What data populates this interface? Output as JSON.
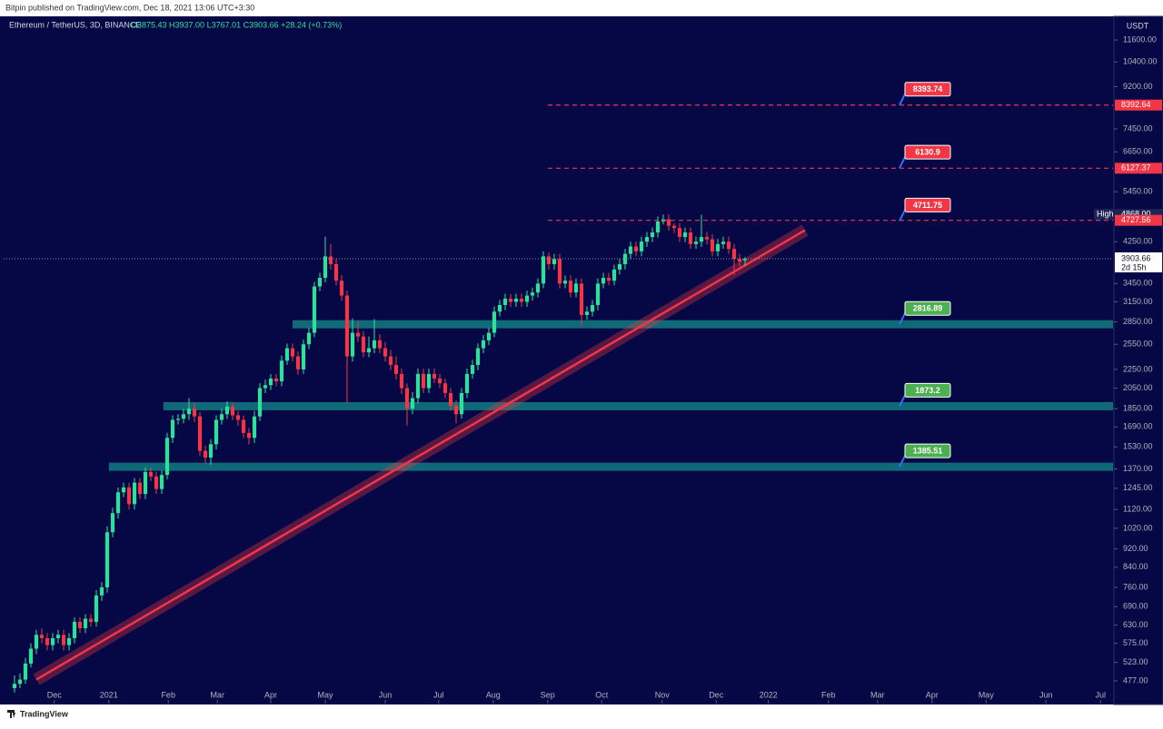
{
  "header": {
    "publisher": "Bitpin published on TradingView.com, Dec 18, 2021 13:06 UTC+3:30",
    "footer": "TradingView"
  },
  "chart_data": {
    "type": "candlestick",
    "symbol": "Ethereum / TetherUS, 3D, BINANCE",
    "ohlc_text": "O3875.43 H3937.00 L3767.01 C3903.66 +28.24 (+0.73%)",
    "currency": "USDT",
    "log_scale": true,
    "up_color": "#2fe09b",
    "down_color": "#f23645",
    "ylim": [
      426,
      13055
    ],
    "xlim": [
      -2,
      201.5
    ],
    "yticks": [
      {
        "value": 11600,
        "label": "11600.00"
      },
      {
        "value": 10400,
        "label": "10400.00"
      },
      {
        "value": 9200,
        "label": "9200.00"
      },
      {
        "value": 7450,
        "label": "7450.00"
      },
      {
        "value": 6650,
        "label": "6650.00"
      },
      {
        "value": 5450,
        "label": "5450.00"
      },
      {
        "value": 4250,
        "label": "4250.00"
      },
      {
        "value": 3450,
        "label": "3450.00"
      },
      {
        "value": 3150,
        "label": "3150.00"
      },
      {
        "value": 2850,
        "label": "2850.00"
      },
      {
        "value": 2550,
        "label": "2550.00"
      },
      {
        "value": 2250,
        "label": "2250.00"
      },
      {
        "value": 2050,
        "label": "2050.00"
      },
      {
        "value": 1850,
        "label": "1850.00"
      },
      {
        "value": 1690,
        "label": "1690.00"
      },
      {
        "value": 1530,
        "label": "1530.00"
      },
      {
        "value": 1370,
        "label": "1370.00"
      },
      {
        "value": 1245,
        "label": "1245.00"
      },
      {
        "value": 1120,
        "label": "1120.00"
      },
      {
        "value": 1020,
        "label": "1020.00"
      },
      {
        "value": 920,
        "label": "920.00"
      },
      {
        "value": 840,
        "label": "840.00"
      },
      {
        "value": 760,
        "label": "760.00"
      },
      {
        "value": 690,
        "label": "690.00"
      },
      {
        "value": 630,
        "label": "630.00"
      },
      {
        "value": 575,
        "label": "575.00"
      },
      {
        "value": 523,
        "label": "523.00"
      },
      {
        "value": 477,
        "label": "477.00"
      }
    ],
    "xticks": [
      {
        "value": 7.3,
        "label": "Dec"
      },
      {
        "value": 17.3,
        "label": "2021"
      },
      {
        "value": 28.2,
        "label": "Feb"
      },
      {
        "value": 37.2,
        "label": "Mar"
      },
      {
        "value": 47,
        "label": "Apr"
      },
      {
        "value": 57,
        "label": "May"
      },
      {
        "value": 68,
        "label": "Jun"
      },
      {
        "value": 77.8,
        "label": "Jul"
      },
      {
        "value": 87.8,
        "label": "Aug"
      },
      {
        "value": 97.8,
        "label": "Sep"
      },
      {
        "value": 107.7,
        "label": "Oct"
      },
      {
        "value": 118.8,
        "label": "Nov"
      },
      {
        "value": 128.7,
        "label": "Dec"
      },
      {
        "value": 138.3,
        "label": "2022"
      },
      {
        "value": 149.3,
        "label": "Feb"
      },
      {
        "value": 158.3,
        "label": "Mar"
      },
      {
        "value": 168.3,
        "label": "Apr"
      },
      {
        "value": 178.2,
        "label": "May"
      },
      {
        "value": 189.2,
        "label": "Jun"
      },
      {
        "value": 199.2,
        "label": "Jul"
      }
    ],
    "candles": [
      [
        460,
        490,
        450,
        470
      ],
      [
        470,
        495,
        460,
        480
      ],
      [
        480,
        535,
        470,
        520
      ],
      [
        520,
        575,
        510,
        560
      ],
      [
        560,
        615,
        545,
        600
      ],
      [
        600,
        620,
        575,
        590
      ],
      [
        590,
        605,
        555,
        570
      ],
      [
        570,
        605,
        555,
        590
      ],
      [
        590,
        615,
        575,
        600
      ],
      [
        600,
        615,
        555,
        570
      ],
      [
        570,
        605,
        555,
        590
      ],
      [
        590,
        655,
        575,
        640
      ],
      [
        640,
        655,
        605,
        620
      ],
      [
        620,
        665,
        605,
        650
      ],
      [
        650,
        665,
        625,
        640
      ],
      [
        640,
        750,
        625,
        730
      ],
      [
        730,
        780,
        710,
        760
      ],
      [
        760,
        1030,
        740,
        1000
      ],
      [
        1000,
        1130,
        975,
        1100
      ],
      [
        1100,
        1250,
        1070,
        1220
      ],
      [
        1220,
        1280,
        1190,
        1250
      ],
      [
        1250,
        1280,
        1120,
        1150
      ],
      [
        1150,
        1310,
        1120,
        1280
      ],
      [
        1280,
        1310,
        1180,
        1210
      ],
      [
        1210,
        1380,
        1180,
        1350
      ],
      [
        1350,
        1380,
        1290,
        1320
      ],
      [
        1320,
        1350,
        1210,
        1240
      ],
      [
        1240,
        1360,
        1210,
        1330
      ],
      [
        1330,
        1640,
        1300,
        1600
      ],
      [
        1600,
        1790,
        1560,
        1750
      ],
      [
        1750,
        1800,
        1710,
        1760
      ],
      [
        1760,
        1850,
        1720,
        1800
      ],
      [
        1800,
        1950,
        1750,
        1850
      ],
      [
        1850,
        1900,
        1730,
        1780
      ],
      [
        1780,
        1820,
        1460,
        1500
      ],
      [
        1500,
        1540,
        1410,
        1450
      ],
      [
        1450,
        1590,
        1400,
        1550
      ],
      [
        1550,
        1790,
        1510,
        1750
      ],
      [
        1750,
        1850,
        1710,
        1800
      ],
      [
        1800,
        1920,
        1760,
        1870
      ],
      [
        1870,
        1900,
        1750,
        1790
      ],
      [
        1790,
        1830,
        1700,
        1750
      ],
      [
        1750,
        1790,
        1600,
        1640
      ],
      [
        1640,
        1680,
        1550,
        1600
      ],
      [
        1600,
        1830,
        1560,
        1780
      ],
      [
        1780,
        2100,
        1740,
        2050
      ],
      [
        2050,
        2140,
        2000,
        2080
      ],
      [
        2080,
        2200,
        2030,
        2150
      ],
      [
        2150,
        2200,
        2070,
        2120
      ],
      [
        2120,
        2410,
        2070,
        2350
      ],
      [
        2350,
        2560,
        2300,
        2500
      ],
      [
        2500,
        2560,
        2340,
        2400
      ],
      [
        2400,
        2460,
        2190,
        2250
      ],
      [
        2250,
        2610,
        2200,
        2550
      ],
      [
        2550,
        2770,
        2490,
        2700
      ],
      [
        2700,
        3480,
        2640,
        3400
      ],
      [
        3400,
        3640,
        3320,
        3550
      ],
      [
        3550,
        4360,
        3470,
        3950
      ],
      [
        3950,
        4200,
        3700,
        3800
      ],
      [
        3800,
        3900,
        3420,
        3500
      ],
      [
        3500,
        3600,
        3170,
        3250
      ],
      [
        3250,
        3330,
        1900,
        2400
      ],
      [
        2400,
        2900,
        2340,
        2700
      ],
      [
        2700,
        2850,
        2580,
        2650
      ],
      [
        2650,
        2720,
        2390,
        2450
      ],
      [
        2450,
        2650,
        2390,
        2500
      ],
      [
        2500,
        2890,
        2440,
        2600
      ],
      [
        2600,
        2680,
        2440,
        2500
      ],
      [
        2500,
        2580,
        2340,
        2400
      ],
      [
        2400,
        2480,
        2240,
        2300
      ],
      [
        2300,
        2400,
        2140,
        2200
      ],
      [
        2200,
        2260,
        1990,
        2050
      ],
      [
        2050,
        2100,
        1700,
        1850
      ],
      [
        1850,
        2010,
        1800,
        1950
      ],
      [
        1950,
        2260,
        1900,
        2200
      ],
      [
        2200,
        2260,
        2000,
        2050
      ],
      [
        2050,
        2260,
        2000,
        2200
      ],
      [
        2200,
        2260,
        2100,
        2150
      ],
      [
        2150,
        2200,
        2050,
        2100
      ],
      [
        2100,
        2150,
        1950,
        2000
      ],
      [
        2000,
        2050,
        1830,
        1880
      ],
      [
        1880,
        1930,
        1720,
        1800
      ],
      [
        1800,
        2050,
        1760,
        2000
      ],
      [
        2000,
        2260,
        1950,
        2200
      ],
      [
        2200,
        2360,
        2150,
        2300
      ],
      [
        2300,
        2560,
        2240,
        2500
      ],
      [
        2500,
        2670,
        2440,
        2600
      ],
      [
        2600,
        2770,
        2540,
        2700
      ],
      [
        2700,
        3080,
        2640,
        3000
      ],
      [
        3000,
        3180,
        2930,
        3100
      ],
      [
        3100,
        3280,
        3020,
        3200
      ],
      [
        3200,
        3280,
        3070,
        3150
      ],
      [
        3150,
        3280,
        3070,
        3200
      ],
      [
        3200,
        3280,
        3070,
        3150
      ],
      [
        3150,
        3330,
        3070,
        3250
      ],
      [
        3250,
        3380,
        3170,
        3300
      ],
      [
        3300,
        3540,
        3220,
        3450
      ],
      [
        3450,
        4050,
        3370,
        3950
      ],
      [
        3950,
        4030,
        3700,
        3800
      ],
      [
        3800,
        4000,
        3700,
        3900
      ],
      [
        3900,
        4000,
        3370,
        3450
      ],
      [
        3450,
        3590,
        3370,
        3500
      ],
      [
        3500,
        3590,
        3220,
        3300
      ],
      [
        3300,
        3540,
        3220,
        3450
      ],
      [
        3450,
        3540,
        2800,
        2950
      ],
      [
        2950,
        3080,
        2880,
        3000
      ],
      [
        3000,
        3180,
        2930,
        3100
      ],
      [
        3100,
        3540,
        3020,
        3450
      ],
      [
        3450,
        3640,
        3370,
        3550
      ],
      [
        3550,
        3640,
        3420,
        3500
      ],
      [
        3500,
        3790,
        3420,
        3700
      ],
      [
        3700,
        3900,
        3610,
        3800
      ],
      [
        3800,
        4100,
        3700,
        4000
      ],
      [
        4000,
        4250,
        3900,
        4150
      ],
      [
        4150,
        4250,
        3950,
        4050
      ],
      [
        4050,
        4360,
        3950,
        4250
      ],
      [
        4250,
        4460,
        4140,
        4350
      ],
      [
        4350,
        4560,
        4240,
        4450
      ],
      [
        4450,
        4820,
        4340,
        4700
      ],
      [
        4700,
        4868,
        4630,
        4750
      ],
      [
        4750,
        4870,
        4490,
        4600
      ],
      [
        4600,
        4660,
        4440,
        4550
      ],
      [
        4550,
        4660,
        4240,
        4350
      ],
      [
        4350,
        4560,
        4240,
        4450
      ],
      [
        4450,
        4560,
        4100,
        4200
      ],
      [
        4200,
        4360,
        4100,
        4250
      ],
      [
        4250,
        4860,
        4140,
        4350
      ],
      [
        4350,
        4460,
        4190,
        4300
      ],
      [
        4300,
        4410,
        3950,
        4050
      ],
      [
        4050,
        4310,
        3950,
        4200
      ],
      [
        4200,
        4360,
        4100,
        4250
      ],
      [
        4250,
        4360,
        4000,
        4100
      ],
      [
        4100,
        4200,
        3600,
        3900
      ],
      [
        3900,
        4000,
        3760,
        3850
      ],
      [
        3875.43,
        3937,
        3767.01,
        3903.66
      ]
    ],
    "last_price": 3903.66,
    "countdown": "2d 15h",
    "high_marker": {
      "label": "High",
      "value": {
        "value": 4868,
        "label": "4868.00"
      }
    },
    "trendline": {
      "x": [
        4,
        145
      ],
      "y": [
        480,
        4500
      ],
      "color": "#f23645"
    },
    "resistance_lines": [
      {
        "value": 8392.64,
        "target": 8393.74
      },
      {
        "value": 6127.37,
        "target": 6130.9
      },
      {
        "value": 4727.56,
        "target": 4711.75
      }
    ],
    "support_zones": [
      {
        "value": 2816.89,
        "start": 51
      },
      {
        "value": 1873.2,
        "start": 27.3
      },
      {
        "value": 1385.51,
        "start": 17.3
      }
    ]
  }
}
